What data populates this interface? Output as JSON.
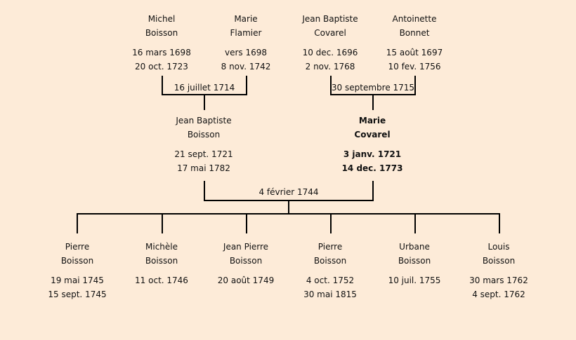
{
  "grandparents": [
    {
      "first": "Michel",
      "last": "Boisson",
      "birth": "16 mars 1698",
      "death": "20 oct. 1723"
    },
    {
      "first": "Marie",
      "last": "Flamier",
      "birth": "vers 1698",
      "death": "8 nov. 1742"
    },
    {
      "first": "Jean Baptiste",
      "last": "Covarel",
      "birth": "10 dec. 1696",
      "death": "2 nov. 1768"
    },
    {
      "first": "Antoinette",
      "last": "Bonnet",
      "birth": "15 août 1697",
      "death": "10 fev. 1756"
    }
  ],
  "grandparent_marriages": [
    "16 juillet 1714",
    "30 septembre 1715"
  ],
  "parents": [
    {
      "first": "Jean Baptiste",
      "last": "Boisson",
      "birth": "21 sept. 1721",
      "death": "17 mai 1782"
    },
    {
      "first": "Marie",
      "last": "Covarel",
      "birth": "3 janv. 1721",
      "death": "14 dec. 1773",
      "highlighted": true
    }
  ],
  "parent_marriage": "4 février 1744",
  "children": [
    {
      "first": "Pierre",
      "last": "Boisson",
      "birth": "19 mai 1745",
      "death": "15 sept. 1745"
    },
    {
      "first": "Michèle",
      "last": "Boisson",
      "birth": "11 oct. 1746",
      "death": ""
    },
    {
      "first": "Jean Pierre",
      "last": "Boisson",
      "birth": "20 août 1749",
      "death": ""
    },
    {
      "first": "Pierre",
      "last": "Boisson",
      "birth": "4 oct. 1752",
      "death": "30 mai 1815"
    },
    {
      "first": "Urbane",
      "last": "Boisson",
      "birth": "10 juil. 1755",
      "death": ""
    },
    {
      "first": "Louis",
      "last": "Boisson",
      "birth": "30 mars 1762",
      "death": "4 sept. 1762"
    }
  ],
  "colors": {
    "background": "#fdebd8",
    "line": "#000000"
  }
}
